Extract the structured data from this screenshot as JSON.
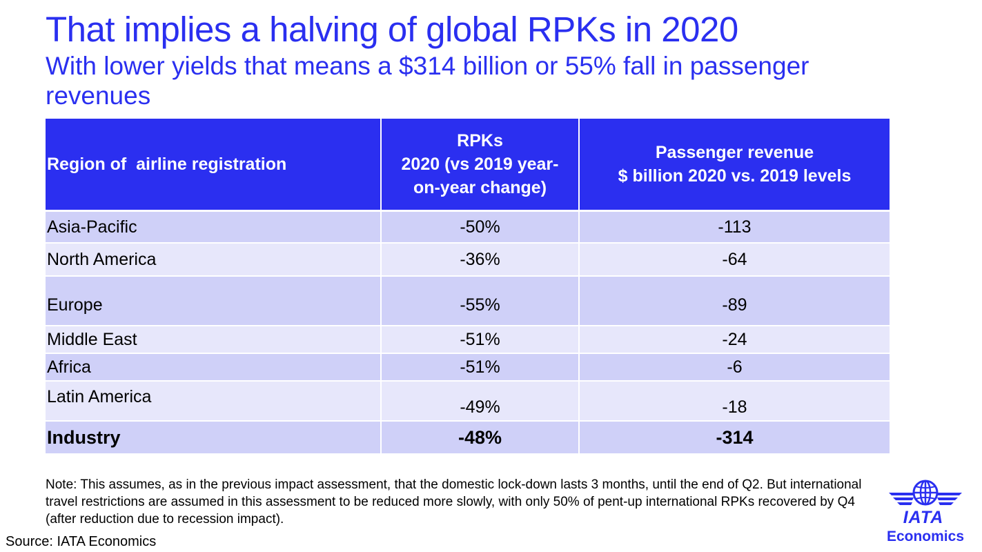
{
  "title": "That implies a halving of global RPKs in 2020",
  "subtitle": "With lower yields that means a $314 billion or 55% fall in passenger revenues",
  "table": {
    "headers": {
      "region": "Region of  airline registration",
      "rpk": "RPKs\n2020 (vs 2019 year-\non-year change)",
      "revenue": "Passenger revenue\n$ billion 2020 vs. 2019 levels"
    },
    "rows": [
      {
        "region": "Asia-Pacific",
        "rpk": "-50%",
        "revenue": "-113"
      },
      {
        "region": "North America",
        "rpk": "-36%",
        "revenue": "-64"
      },
      {
        "region": "Europe",
        "rpk": "-55%",
        "revenue": "-89"
      },
      {
        "region": "Middle East",
        "rpk": "-51%",
        "revenue": "-24"
      },
      {
        "region": "Africa",
        "rpk": "-51%",
        "revenue": "-6"
      },
      {
        "region": "Latin America",
        "rpk": "-49%",
        "revenue": "-18"
      },
      {
        "region": "Industry",
        "rpk": "-48%",
        "revenue": "-314"
      }
    ]
  },
  "note": "Note: This assumes, as in the previous impact assessment, that the domestic lock-down lasts 3 months, until the end of Q2. But international travel restrictions are assumed in this assessment to be reduced more slowly, with only 50% of pent-up international RPKs recovered by Q4 (after reduction due to recession impact).",
  "source": "Source: IATA Economics",
  "logo": {
    "wordmark": "IATA",
    "sub": "Economics",
    "icon": "globe-wings-icon",
    "color": "#2a2ff0"
  },
  "colors": {
    "header_bg": "#2b2ff0",
    "row_odd": "#cfd0f8",
    "row_even": "#e7e7fb",
    "title": "#2a2ff0"
  }
}
